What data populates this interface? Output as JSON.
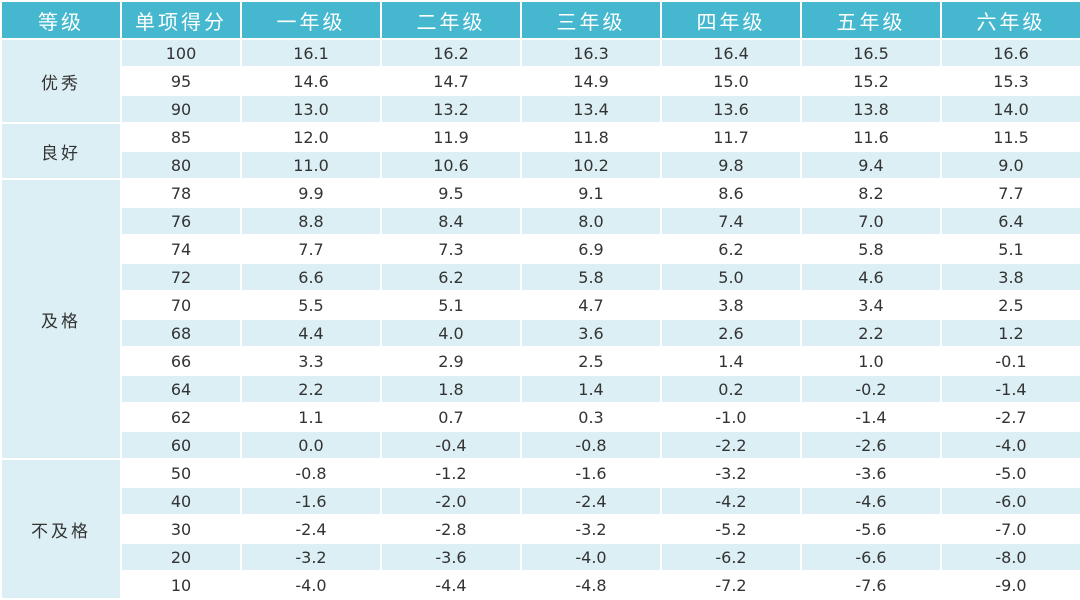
{
  "header": [
    "等级",
    "单项得分",
    "一年级",
    "二年级",
    "三年级",
    "四年级",
    "五年级",
    "六年级"
  ],
  "groups": [
    {
      "label": "优秀",
      "rows": [
        {
          "score": "100",
          "grades": [
            "16.1",
            "16.2",
            "16.3",
            "16.4",
            "16.5",
            "16.6"
          ]
        },
        {
          "score": "95",
          "grades": [
            "14.6",
            "14.7",
            "14.9",
            "15.0",
            "15.2",
            "15.3"
          ]
        },
        {
          "score": "90",
          "grades": [
            "13.0",
            "13.2",
            "13.4",
            "13.6",
            "13.8",
            "14.0"
          ]
        }
      ]
    },
    {
      "label": "良好",
      "rows": [
        {
          "score": "85",
          "grades": [
            "12.0",
            "11.9",
            "11.8",
            "11.7",
            "11.6",
            "11.5"
          ]
        },
        {
          "score": "80",
          "grades": [
            "11.0",
            "10.6",
            "10.2",
            "9.8",
            "9.4",
            "9.0"
          ]
        }
      ]
    },
    {
      "label": "及格",
      "rows": [
        {
          "score": "78",
          "grades": [
            "9.9",
            "9.5",
            "9.1",
            "8.6",
            "8.2",
            "7.7"
          ]
        },
        {
          "score": "76",
          "grades": [
            "8.8",
            "8.4",
            "8.0",
            "7.4",
            "7.0",
            "6.4"
          ]
        },
        {
          "score": "74",
          "grades": [
            "7.7",
            "7.3",
            "6.9",
            "6.2",
            "5.8",
            "5.1"
          ]
        },
        {
          "score": "72",
          "grades": [
            "6.6",
            "6.2",
            "5.8",
            "5.0",
            "4.6",
            "3.8"
          ]
        },
        {
          "score": "70",
          "grades": [
            "5.5",
            "5.1",
            "4.7",
            "3.8",
            "3.4",
            "2.5"
          ]
        },
        {
          "score": "68",
          "grades": [
            "4.4",
            "4.0",
            "3.6",
            "2.6",
            "2.2",
            "1.2"
          ]
        },
        {
          "score": "66",
          "grades": [
            "3.3",
            "2.9",
            "2.5",
            "1.4",
            "1.0",
            "-0.1"
          ]
        },
        {
          "score": "64",
          "grades": [
            "2.2",
            "1.8",
            "1.4",
            "0.2",
            "-0.2",
            "-1.4"
          ]
        },
        {
          "score": "62",
          "grades": [
            "1.1",
            "0.7",
            "0.3",
            "-1.0",
            "-1.4",
            "-2.7"
          ]
        },
        {
          "score": "60",
          "grades": [
            "0.0",
            "-0.4",
            "-0.8",
            "-2.2",
            "-2.6",
            "-4.0"
          ]
        }
      ]
    },
    {
      "label": "不及格",
      "rows": [
        {
          "score": "50",
          "grades": [
            "-0.8",
            "-1.2",
            "-1.6",
            "-3.2",
            "-3.6",
            "-5.0"
          ]
        },
        {
          "score": "40",
          "grades": [
            "-1.6",
            "-2.0",
            "-2.4",
            "-4.2",
            "-4.6",
            "-6.0"
          ]
        },
        {
          "score": "30",
          "grades": [
            "-2.4",
            "-2.8",
            "-3.2",
            "-5.2",
            "-5.6",
            "-7.0"
          ]
        },
        {
          "score": "20",
          "grades": [
            "-3.2",
            "-3.6",
            "-4.0",
            "-6.2",
            "-6.6",
            "-8.0"
          ]
        },
        {
          "score": "10",
          "grades": [
            "-4.0",
            "-4.4",
            "-4.8",
            "-7.2",
            "-7.6",
            "-9.0"
          ]
        }
      ]
    }
  ],
  "colors": {
    "header_bg": "#45b8cf",
    "header_text": "#ffffff",
    "band_bg": "#dbeff4",
    "row_bg": "#ffffff",
    "text": "#333333"
  }
}
